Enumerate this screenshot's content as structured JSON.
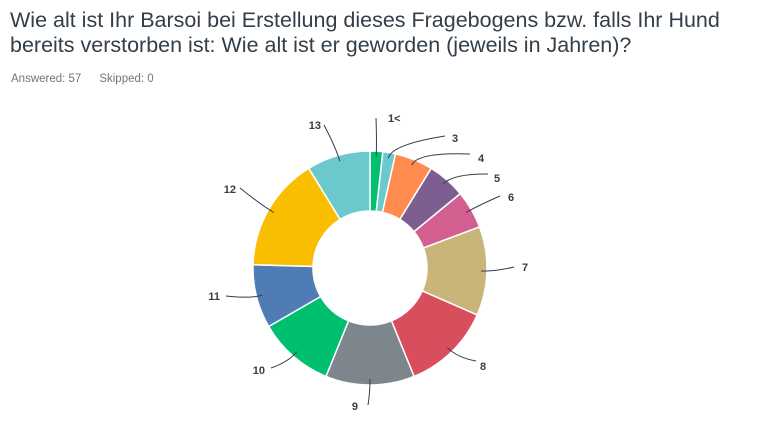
{
  "question": {
    "title": "Wie alt ist Ihr Barsoi bei Erstellung dieses Fragebogens bzw. falls Ihr Hund bereits verstorben ist: Wie alt ist er geworden (jeweils in Jahren)?"
  },
  "stats": {
    "answered_label": "Answered: 57",
    "skipped_label": "Skipped: 0"
  },
  "chart_data": {
    "type": "pie",
    "donut": true,
    "categories": [
      "1<",
      "3",
      "4",
      "5",
      "6",
      "7",
      "8",
      "9",
      "10",
      "11",
      "12",
      "13"
    ],
    "values": [
      1,
      1,
      3,
      3,
      3,
      7,
      7,
      7,
      6,
      5,
      9,
      5
    ],
    "colors": [
      "#00bf6f",
      "#6bc8cd",
      "#ff8b4f",
      "#7d5e90",
      "#d25f90",
      "#c9b57a",
      "#d94e5d",
      "#7c868c",
      "#00bf6f",
      "#507cb6",
      "#f9be00",
      "#6bc8cd"
    ],
    "total": 57,
    "legend": "none",
    "start": "top, clockwise"
  }
}
